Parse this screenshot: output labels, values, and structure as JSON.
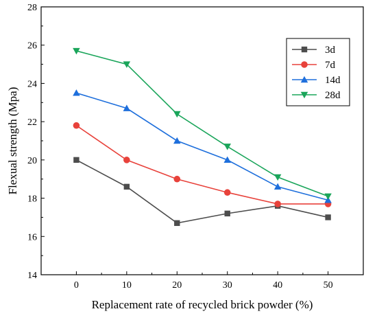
{
  "chart_data": {
    "type": "line",
    "title": "",
    "xlabel": "Replacement rate of recycled brick powder (%)",
    "ylabel": "Flexual strength (Mpa)",
    "x": [
      0,
      10,
      20,
      30,
      40,
      50
    ],
    "xlim": [
      -7,
      57
    ],
    "ylim": [
      14,
      28
    ],
    "xticks": [
      0,
      10,
      20,
      30,
      40,
      50
    ],
    "yticks": [
      14,
      16,
      18,
      20,
      22,
      24,
      26,
      28
    ],
    "grid": false,
    "legend_position": "top-right",
    "series": [
      {
        "name": "3d",
        "color": "#4d4d4d",
        "marker": "square",
        "values": [
          20.0,
          18.6,
          16.7,
          17.2,
          17.6,
          17.0
        ]
      },
      {
        "name": "7d",
        "color": "#e8423b",
        "marker": "circle",
        "values": [
          21.8,
          20.0,
          19.0,
          18.3,
          17.7,
          17.7
        ]
      },
      {
        "name": "14d",
        "color": "#1e6fdc",
        "marker": "triangle-up",
        "values": [
          23.5,
          22.7,
          21.0,
          20.0,
          18.6,
          17.9
        ]
      },
      {
        "name": "28d",
        "color": "#1aa55a",
        "marker": "triangle-down",
        "values": [
          25.7,
          25.0,
          22.4,
          20.7,
          19.1,
          18.1
        ]
      }
    ]
  }
}
